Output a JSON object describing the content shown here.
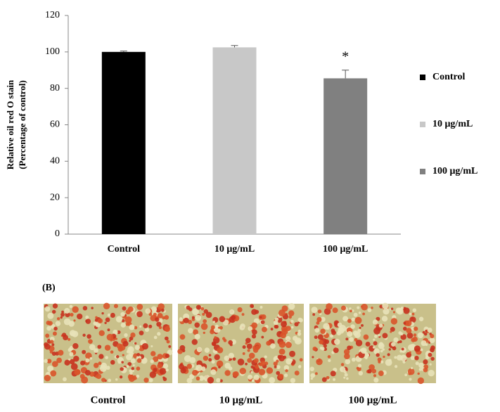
{
  "chart_data": {
    "type": "bar",
    "ylabel": [
      "Relative oil red O stain",
      "(Percentage of control)"
    ],
    "categories": [
      "Control",
      "10 μg/mL",
      "100 μg/mL"
    ],
    "values": [
      100,
      102.5,
      85.5
    ],
    "errors": [
      0.5,
      1,
      4.5
    ],
    "significance": [
      null,
      null,
      "*"
    ],
    "colors": [
      "#000000",
      "#c8c8c8",
      "#808080"
    ],
    "legend": [
      "Control",
      "10 μg/mL",
      "100 μg/mL"
    ],
    "ylim": [
      0,
      120
    ],
    "yticks": [
      0,
      20,
      40,
      60,
      80,
      100,
      120
    ]
  },
  "figure_b": {
    "label": "(B)",
    "captions": [
      "Control",
      "10 μg/mL",
      "100 μg/mL"
    ]
  }
}
